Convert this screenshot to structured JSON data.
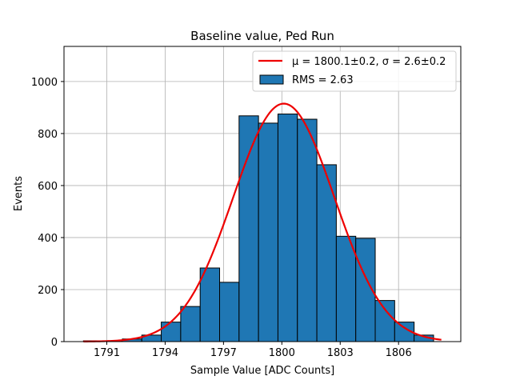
{
  "chart_data": {
    "type": "bar",
    "title": "Baseline value, Ped Run",
    "xlabel": "Sample Value [ADC Counts]",
    "ylabel": "Events",
    "xlim": [
      1788.8,
      1809.2
    ],
    "ylim": [
      0,
      1135
    ],
    "xticks": [
      1791,
      1794,
      1797,
      1800,
      1803,
      1806
    ],
    "yticks": [
      0,
      200,
      400,
      600,
      800,
      1000
    ],
    "grid": true,
    "legend_position": "top-right",
    "histogram": {
      "name": "RMS = 2.63",
      "color": "#1f77b4",
      "edge_color": "#000000",
      "bin_edges": [
        1789.8,
        1791.8,
        1792.8,
        1793.8,
        1794.8,
        1795.8,
        1796.8,
        1797.8,
        1798.8,
        1799.8,
        1800.8,
        1801.8,
        1802.8,
        1803.8,
        1804.8,
        1805.8,
        1806.8,
        1807.8
      ],
      "counts": [
        3,
        10,
        25,
        75,
        135,
        283,
        228,
        868,
        840,
        875,
        855,
        680,
        405,
        397,
        158,
        75,
        25
      ]
    },
    "fit": {
      "name": "μ = 1800.1±0.2, σ = 2.6±0.2",
      "color": "#ee0000",
      "mu": 1800.1,
      "sigma": 2.6,
      "amplitude": 915,
      "x_range": [
        1789.8,
        1808.2
      ]
    }
  }
}
